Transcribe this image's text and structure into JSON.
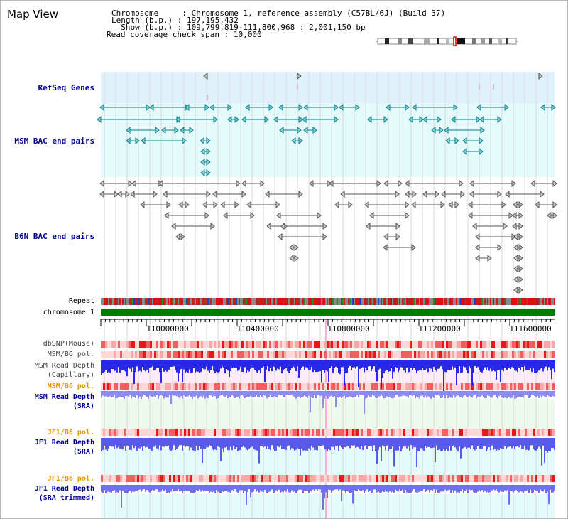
{
  "panel": {
    "title": "Map View",
    "info": [
      {
        "key": "Chromosome     ",
        "value": "Chromosome 1, reference assembly (C57BL/6J) (Build 37)"
      },
      {
        "key": "Length (b.p.) ",
        "value": "197,195,432"
      },
      {
        "key": "  Show (b.p.) ",
        "value": "109,799,819-111,800,968 : 2,001,150 bp"
      },
      {
        "key": "Read coverage check span ",
        "value": "10,000"
      }
    ]
  },
  "tracks": {
    "refseq": {
      "label": "RefSeq Genes",
      "color": "#00008b"
    },
    "msm_bac": {
      "label": "MSM BAC end pairs",
      "color": "#00008b"
    },
    "b6n_bac": {
      "label": "B6N BAC end pairs",
      "color": "#00008b"
    },
    "repeat": {
      "label": "Repeat",
      "color": "#000000"
    },
    "chromosome": {
      "label": "chromosome 1",
      "color": "#000000"
    },
    "dbsnp": {
      "label": "dbSNP(Mouse)",
      "color": "#444444"
    },
    "msm_pol": {
      "label": "MSM/B6 pol.",
      "color": "#444444"
    },
    "msm_depth_cap": {
      "label": "MSM Read Depth",
      "label2": "(Capillary)",
      "color": "#444444"
    },
    "msm_pol_sra": {
      "label": "MSM/B6 pol.",
      "color": "#e69500"
    },
    "msm_depth_sra": {
      "label": "MSM Read Depth",
      "label2": "(SRA)",
      "color": "#00008b"
    },
    "jf1_pol": {
      "label": "JF1/B6 pol.",
      "color": "#e69500"
    },
    "jf1_depth": {
      "label": "JF1 Read Depth",
      "label2": "(SRA)",
      "color": "#00008b"
    },
    "jf1_pol_trim": {
      "label": "JF1/B6 pol.",
      "color": "#e69500"
    },
    "jf1_depth_trim": {
      "label": "JF1 Read Depth",
      "label2": "(SRA trimmed)",
      "color": "#00008b"
    }
  },
  "axis": {
    "ticks": [
      "110000000",
      "110400000",
      "110800000",
      "111200000",
      "111600000"
    ]
  },
  "colors": {
    "refseq_band": "#dff2fb",
    "bac_band": "#e5fafa",
    "grid": "#d8d8d8",
    "chromosome_bar": "#007a00",
    "depth_blue": "#2828e6",
    "depth_light": "#8c8cf0",
    "highlight": "#f0a0c8"
  }
}
